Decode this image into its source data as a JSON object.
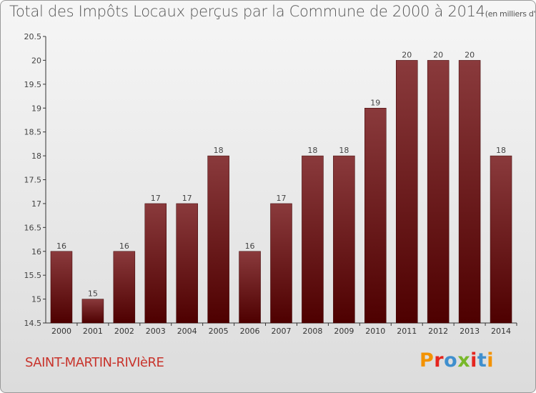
{
  "title": "Total des Impôts Locaux perçus par la Commune de 2000 à 2014",
  "unit": "(en milliers d'€)",
  "commune": "SAINT-MARTIN-RIVIèRE",
  "logo": {
    "text": "Proxiti",
    "colors": [
      "#f39200",
      "#e5261f",
      "#3f8fce",
      "#78b829",
      "#e5261f",
      "#3f8fce",
      "#f39200"
    ]
  },
  "colors": {
    "bar_top": "#8a3a3c",
    "bar_bottom": "#4e0000",
    "axis": "#333333",
    "grid": "#c8c8c8"
  },
  "chart_data": {
    "type": "bar",
    "categories": [
      "2000",
      "2001",
      "2002",
      "2003",
      "2004",
      "2005",
      "2006",
      "2007",
      "2008",
      "2009",
      "2010",
      "2011",
      "2012",
      "2013",
      "2014"
    ],
    "values": [
      16,
      15,
      16,
      17,
      17,
      18,
      16,
      17,
      18,
      18,
      19,
      20,
      20,
      20,
      18
    ],
    "data_labels": [
      "16",
      "15",
      "16",
      "17",
      "17",
      "18",
      "16",
      "17",
      "18",
      "18",
      "19",
      "20",
      "20",
      "20",
      "18"
    ],
    "title": "Total des Impôts Locaux perçus par la Commune de 2000 à 2014",
    "xlabel": "",
    "ylabel": "",
    "ylim": [
      14.5,
      20.5
    ],
    "yticks": [
      14.5,
      15,
      15.5,
      16,
      16.5,
      17,
      17.5,
      18,
      18.5,
      19,
      19.5,
      20,
      20.5
    ],
    "ytick_labels": [
      "14.5",
      "15",
      "15.5",
      "16",
      "16.5",
      "17",
      "17.5",
      "18",
      "18.5",
      "19",
      "19.5",
      "20",
      "20.5"
    ],
    "grid": false,
    "legend": "none"
  }
}
